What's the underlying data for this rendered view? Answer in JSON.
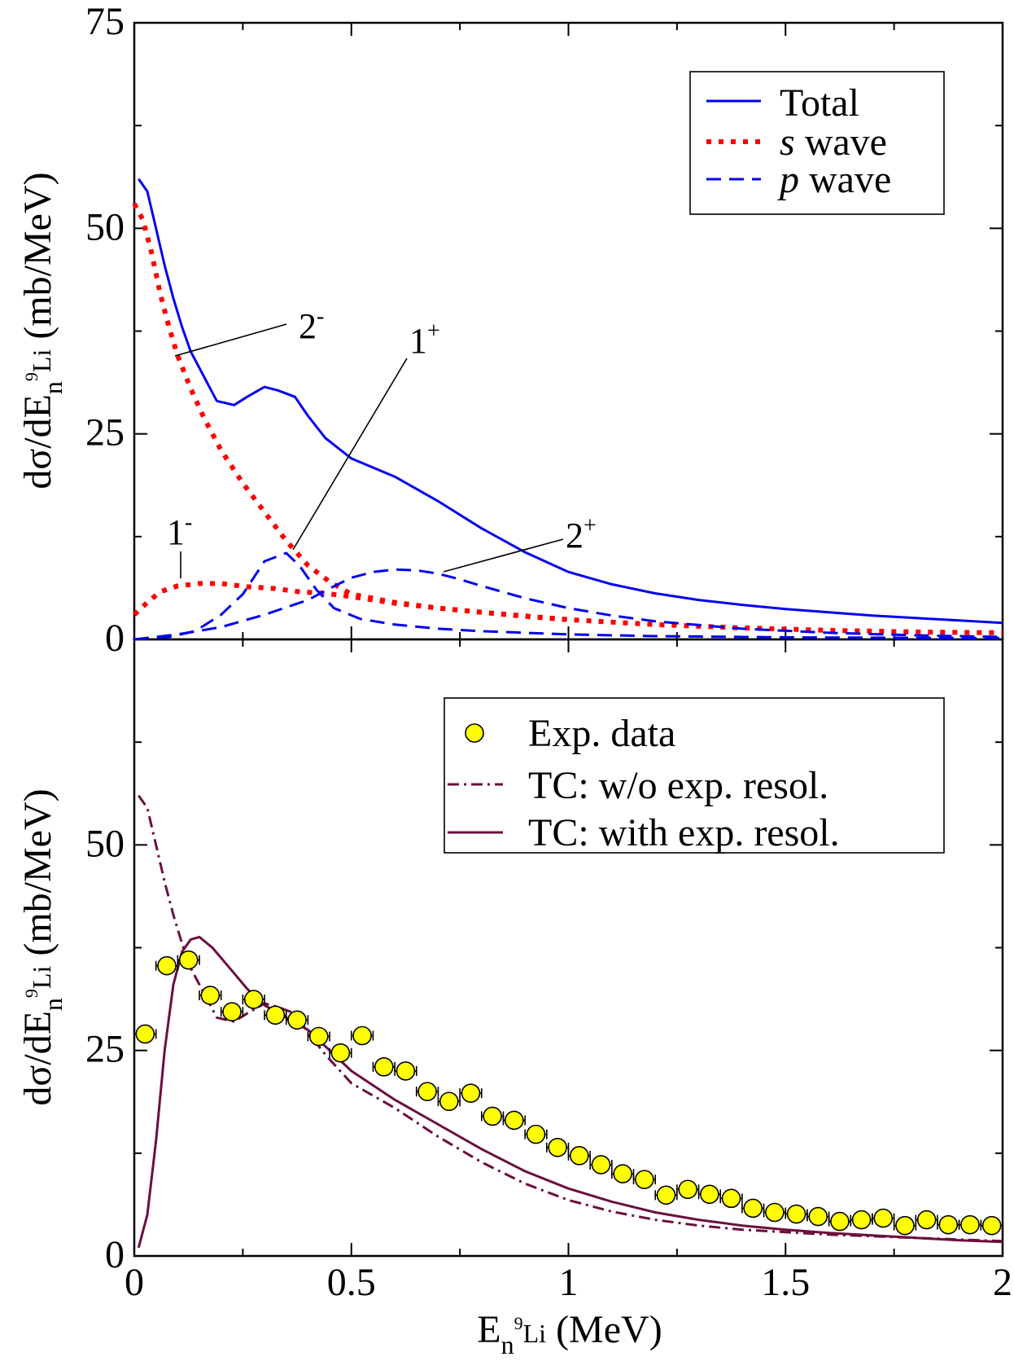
{
  "figure": {
    "ylabel_prefix": "dσ/dE",
    "ylabel_sub": "n",
    "ylabel_sup": "9",
    "ylabel_sub2": "Li",
    "ylabel_unit": "(mb/MeV)",
    "xlabel_prefix": "E",
    "xlabel_sub": "n",
    "xlabel_sup": "9",
    "xlabel_sub2": "Li",
    "xlabel_unit": "(MeV)"
  },
  "chart_data": [
    {
      "type": "line",
      "panel": "top",
      "xlim": [
        0,
        2
      ],
      "ylim": [
        0,
        75
      ],
      "x_ticks": [
        "0",
        "0.5",
        "1",
        "1.5",
        "2"
      ],
      "y_ticks": [
        "0",
        "25",
        "50",
        "75"
      ],
      "legend_position": "top-right",
      "series": [
        {
          "name": "Total",
          "name_em": "",
          "name_rest": "Total",
          "color": "#0000ee",
          "style": "solid",
          "points": [
            [
              0.01,
              56.0
            ],
            [
              0.03,
              54.5
            ],
            [
              0.05,
              50.0
            ],
            [
              0.07,
              45.5
            ],
            [
              0.09,
              41.5
            ],
            [
              0.11,
              38.0
            ],
            [
              0.13,
              35.0
            ],
            [
              0.16,
              32.0
            ],
            [
              0.19,
              29.0
            ],
            [
              0.23,
              28.5
            ],
            [
              0.26,
              29.5
            ],
            [
              0.3,
              30.7
            ],
            [
              0.33,
              30.3
            ],
            [
              0.37,
              29.5
            ],
            [
              0.4,
              27.2
            ],
            [
              0.44,
              24.5
            ],
            [
              0.5,
              22.0
            ],
            [
              0.6,
              19.8
            ],
            [
              0.7,
              16.8
            ],
            [
              0.8,
              13.5
            ],
            [
              0.9,
              10.6
            ],
            [
              1.0,
              8.2
            ],
            [
              1.1,
              6.7
            ],
            [
              1.2,
              5.6
            ],
            [
              1.3,
              4.8
            ],
            [
              1.4,
              4.2
            ],
            [
              1.5,
              3.7
            ],
            [
              1.6,
              3.3
            ],
            [
              1.7,
              2.9
            ],
            [
              1.8,
              2.6
            ],
            [
              1.9,
              2.3
            ],
            [
              2.0,
              2.0
            ]
          ]
        },
        {
          "name": "s wave",
          "name_em": "s",
          "name_rest": " wave",
          "color": "#ff0000",
          "style": "dotted",
          "points": [
            [
              0.0,
              53.0
            ],
            [
              0.02,
              51.0
            ],
            [
              0.04,
              47.0
            ],
            [
              0.06,
              42.0
            ],
            [
              0.08,
              38.0
            ],
            [
              0.1,
              34.5
            ],
            [
              0.13,
              30.5
            ],
            [
              0.16,
              27.0
            ],
            [
              0.2,
              23.0
            ],
            [
              0.25,
              19.0
            ],
            [
              0.3,
              15.5
            ],
            [
              0.35,
              12.0
            ],
            [
              0.4,
              9.0
            ],
            [
              0.45,
              7.0
            ],
            [
              0.5,
              5.5
            ],
            [
              0.6,
              4.5
            ],
            [
              0.7,
              3.8
            ],
            [
              0.8,
              3.3
            ],
            [
              0.9,
              2.8
            ],
            [
              1.0,
              2.4
            ],
            [
              1.2,
              1.8
            ],
            [
              1.4,
              1.4
            ],
            [
              1.6,
              1.1
            ],
            [
              1.8,
              0.9
            ],
            [
              2.0,
              0.8
            ]
          ]
        },
        {
          "name": "s wave 1⁻",
          "name_em": "",
          "name_rest": "",
          "color": "#ff0000",
          "style": "dotted",
          "legend": false,
          "points": [
            [
              0.0,
              3.0
            ],
            [
              0.03,
              4.5
            ],
            [
              0.06,
              5.8
            ],
            [
              0.1,
              6.5
            ],
            [
              0.15,
              6.8
            ],
            [
              0.2,
              6.8
            ],
            [
              0.26,
              6.4
            ],
            [
              0.32,
              6.2
            ],
            [
              0.38,
              5.8
            ],
            [
              0.44,
              5.6
            ],
            [
              0.5,
              5.2
            ],
            [
              0.55,
              4.8
            ],
            [
              0.6,
              4.4
            ],
            [
              0.7,
              3.8
            ],
            [
              0.8,
              3.3
            ],
            [
              1.0,
              2.4
            ]
          ]
        },
        {
          "name": "p wave",
          "name_em": "p",
          "name_rest": " wave",
          "color": "#0000ee",
          "style": "dashed",
          "points": [
            [
              0.0,
              0.0
            ],
            [
              0.08,
              0.3
            ],
            [
              0.14,
              1.0
            ],
            [
              0.2,
              3.0
            ],
            [
              0.25,
              5.5
            ],
            [
              0.3,
              9.5
            ],
            [
              0.35,
              10.5
            ],
            [
              0.38,
              9.0
            ],
            [
              0.42,
              6.0
            ],
            [
              0.46,
              3.8
            ],
            [
              0.52,
              2.5
            ],
            [
              0.6,
              1.8
            ],
            [
              0.7,
              1.3
            ],
            [
              0.8,
              1.0
            ],
            [
              1.0,
              0.6
            ],
            [
              1.2,
              0.4
            ],
            [
              1.5,
              0.25
            ],
            [
              2.0,
              0.15
            ]
          ]
        },
        {
          "name": "p wave 2⁺",
          "name_em": "",
          "name_rest": "",
          "color": "#0000ee",
          "style": "dashed",
          "legend": false,
          "points": [
            [
              0.0,
              0.0
            ],
            [
              0.1,
              0.6
            ],
            [
              0.2,
              1.5
            ],
            [
              0.3,
              3.0
            ],
            [
              0.4,
              4.8
            ],
            [
              0.45,
              6.2
            ],
            [
              0.5,
              7.5
            ],
            [
              0.55,
              8.2
            ],
            [
              0.6,
              8.5
            ],
            [
              0.65,
              8.4
            ],
            [
              0.7,
              8.0
            ],
            [
              0.75,
              7.3
            ],
            [
              0.8,
              6.5
            ],
            [
              0.9,
              5.0
            ],
            [
              1.0,
              3.8
            ],
            [
              1.1,
              2.9
            ],
            [
              1.2,
              2.2
            ],
            [
              1.4,
              1.3
            ],
            [
              1.6,
              0.8
            ],
            [
              1.8,
              0.5
            ],
            [
              2.0,
              0.3
            ]
          ]
        }
      ],
      "annotations": [
        {
          "label": "2",
          "sup": "-"
        },
        {
          "label": "1",
          "sup": "+"
        },
        {
          "label": "1",
          "sup": "-"
        },
        {
          "label": "2",
          "sup": "+"
        }
      ]
    },
    {
      "type": "scatter",
      "panel": "bottom",
      "xlim": [
        0,
        2
      ],
      "ylim": [
        0,
        75
      ],
      "x_ticks": [
        "0",
        "0.5",
        "1",
        "1.5",
        "2"
      ],
      "y_ticks": [
        "0",
        "25",
        "50"
      ],
      "legend_position": "top-right",
      "series": [
        {
          "name": "Exp. data",
          "color": "#ffff00",
          "style": "marker",
          "points": [
            [
              0.025,
              27.0
            ],
            [
              0.075,
              35.3
            ],
            [
              0.125,
              36.0
            ],
            [
              0.175,
              31.7
            ],
            [
              0.225,
              29.7
            ],
            [
              0.275,
              31.2
            ],
            [
              0.325,
              29.3
            ],
            [
              0.375,
              28.7
            ],
            [
              0.425,
              26.7
            ],
            [
              0.475,
              24.7
            ],
            [
              0.525,
              26.8
            ],
            [
              0.575,
              23.0
            ],
            [
              0.625,
              22.5
            ],
            [
              0.675,
              20.0
            ],
            [
              0.725,
              18.8
            ],
            [
              0.775,
              19.8
            ],
            [
              0.825,
              17.0
            ],
            [
              0.875,
              16.5
            ],
            [
              0.925,
              14.8
            ],
            [
              0.975,
              13.2
            ],
            [
              1.025,
              12.2
            ],
            [
              1.075,
              11.1
            ],
            [
              1.125,
              10.0
            ],
            [
              1.175,
              9.3
            ],
            [
              1.225,
              7.4
            ],
            [
              1.275,
              8.1
            ],
            [
              1.325,
              7.5
            ],
            [
              1.375,
              7.0
            ],
            [
              1.425,
              5.8
            ],
            [
              1.475,
              5.3
            ],
            [
              1.525,
              5.1
            ],
            [
              1.575,
              4.8
            ],
            [
              1.625,
              4.2
            ],
            [
              1.675,
              4.4
            ],
            [
              1.725,
              4.6
            ],
            [
              1.775,
              3.7
            ],
            [
              1.825,
              4.4
            ],
            [
              1.875,
              3.8
            ],
            [
              1.925,
              3.8
            ],
            [
              1.975,
              3.7
            ]
          ],
          "x_error": 0.025,
          "y_error": [
            1.0,
            1.0,
            1.0,
            1.0,
            1.0,
            1.0,
            1.0,
            1.0,
            1.0,
            1.0,
            1.0,
            1.0,
            1.0,
            1.0,
            1.0,
            1.0,
            0.5,
            0.5,
            0.5,
            0.5,
            0.5,
            0.5,
            0.5,
            0.5,
            0.5,
            0.5,
            0.5,
            0.5,
            0.5,
            0.5,
            0.5,
            0.5,
            0.5,
            0.5,
            0.5,
            0.5,
            0.5,
            0.5,
            0.5,
            0.5
          ]
        },
        {
          "name": "TC: w/o exp. resol.",
          "color": "#6b0f3f",
          "style": "dashdot",
          "points": [
            [
              0.01,
              56.0
            ],
            [
              0.03,
              54.5
            ],
            [
              0.05,
              50.0
            ],
            [
              0.07,
              45.5
            ],
            [
              0.09,
              41.5
            ],
            [
              0.11,
              38.0
            ],
            [
              0.13,
              35.0
            ],
            [
              0.16,
              32.0
            ],
            [
              0.19,
              29.0
            ],
            [
              0.23,
              28.5
            ],
            [
              0.26,
              29.5
            ],
            [
              0.3,
              30.7
            ],
            [
              0.33,
              30.3
            ],
            [
              0.37,
              29.5
            ],
            [
              0.4,
              27.2
            ],
            [
              0.44,
              24.5
            ],
            [
              0.5,
              21.0
            ],
            [
              0.6,
              18.0
            ],
            [
              0.7,
              14.5
            ],
            [
              0.8,
              11.4
            ],
            [
              0.9,
              8.8
            ],
            [
              1.0,
              6.8
            ],
            [
              1.1,
              5.4
            ],
            [
              1.2,
              4.4
            ],
            [
              1.3,
              3.7
            ],
            [
              1.4,
              3.2
            ],
            [
              1.5,
              2.9
            ],
            [
              1.6,
              2.6
            ],
            [
              1.7,
              2.4
            ],
            [
              1.8,
              2.2
            ],
            [
              1.9,
              2.0
            ],
            [
              2.0,
              1.8
            ]
          ]
        },
        {
          "name": "TC: with exp. resol.",
          "color": "#6b0f3f",
          "style": "solid",
          "points": [
            [
              0.01,
              1.0
            ],
            [
              0.03,
              5.0
            ],
            [
              0.05,
              14.0
            ],
            [
              0.07,
              25.0
            ],
            [
              0.09,
              33.0
            ],
            [
              0.11,
              37.0
            ],
            [
              0.13,
              38.5
            ],
            [
              0.15,
              38.8
            ],
            [
              0.18,
              37.5
            ],
            [
              0.22,
              35.0
            ],
            [
              0.26,
              32.5
            ],
            [
              0.3,
              30.5
            ],
            [
              0.35,
              29.0
            ],
            [
              0.4,
              27.5
            ],
            [
              0.45,
              25.0
            ],
            [
              0.5,
              22.5
            ],
            [
              0.6,
              19.0
            ],
            [
              0.7,
              16.0
            ],
            [
              0.8,
              13.0
            ],
            [
              0.9,
              10.3
            ],
            [
              1.0,
              8.2
            ],
            [
              1.1,
              6.6
            ],
            [
              1.2,
              5.3
            ],
            [
              1.3,
              4.4
            ],
            [
              1.4,
              3.7
            ],
            [
              1.5,
              3.2
            ],
            [
              1.6,
              2.8
            ],
            [
              1.7,
              2.5
            ],
            [
              1.8,
              2.2
            ],
            [
              1.9,
              1.9
            ],
            [
              2.0,
              1.7
            ]
          ]
        }
      ]
    }
  ]
}
